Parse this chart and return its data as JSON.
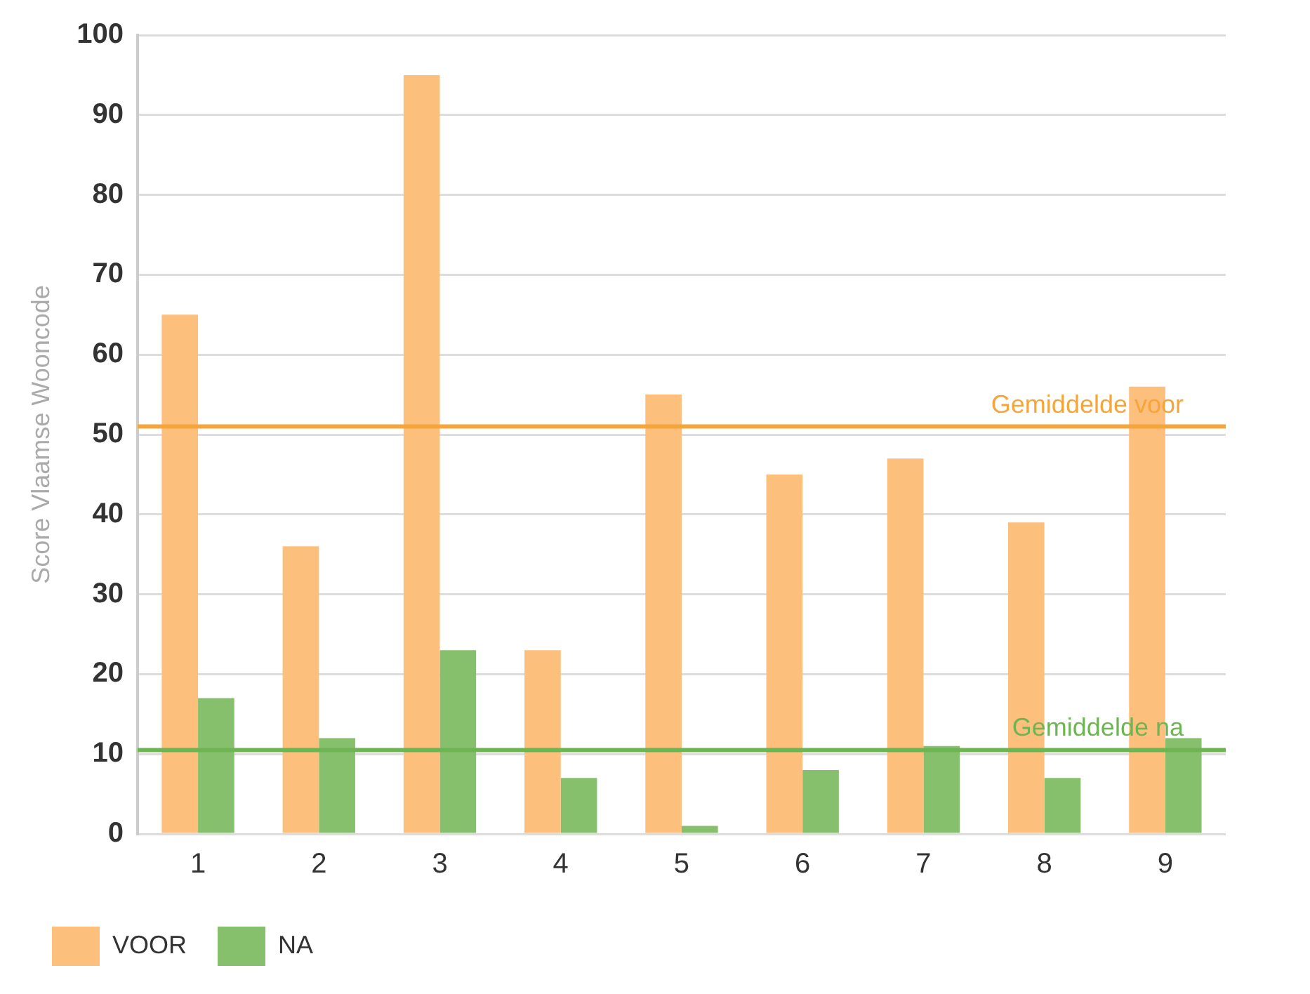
{
  "chart_data": {
    "type": "bar",
    "ylabel": "Score Vlaamse Wooncode",
    "categories": [
      "1",
      "2",
      "3",
      "4",
      "5",
      "6",
      "7",
      "8",
      "9"
    ],
    "series": [
      {
        "name": "VOOR",
        "color": "#fdbf7c",
        "values": [
          65,
          36,
          95,
          23,
          55,
          45,
          47,
          39,
          56
        ]
      },
      {
        "name": "NA",
        "color": "#86c06c",
        "values": [
          17,
          12,
          23,
          7,
          1,
          8,
          11,
          7,
          12
        ]
      }
    ],
    "ylim": [
      0,
      100
    ],
    "yticks": [
      0,
      10,
      20,
      30,
      40,
      50,
      60,
      70,
      80,
      90,
      100
    ],
    "grid": "y",
    "legend": "bottom left",
    "ref_lines": [
      {
        "axis": "y",
        "value": 51,
        "label": "Gemiddelde voor",
        "color": "#f5a53a"
      },
      {
        "axis": "y",
        "value": 10.5,
        "label": "Gemiddelde na",
        "color": "#6db452"
      }
    ]
  }
}
